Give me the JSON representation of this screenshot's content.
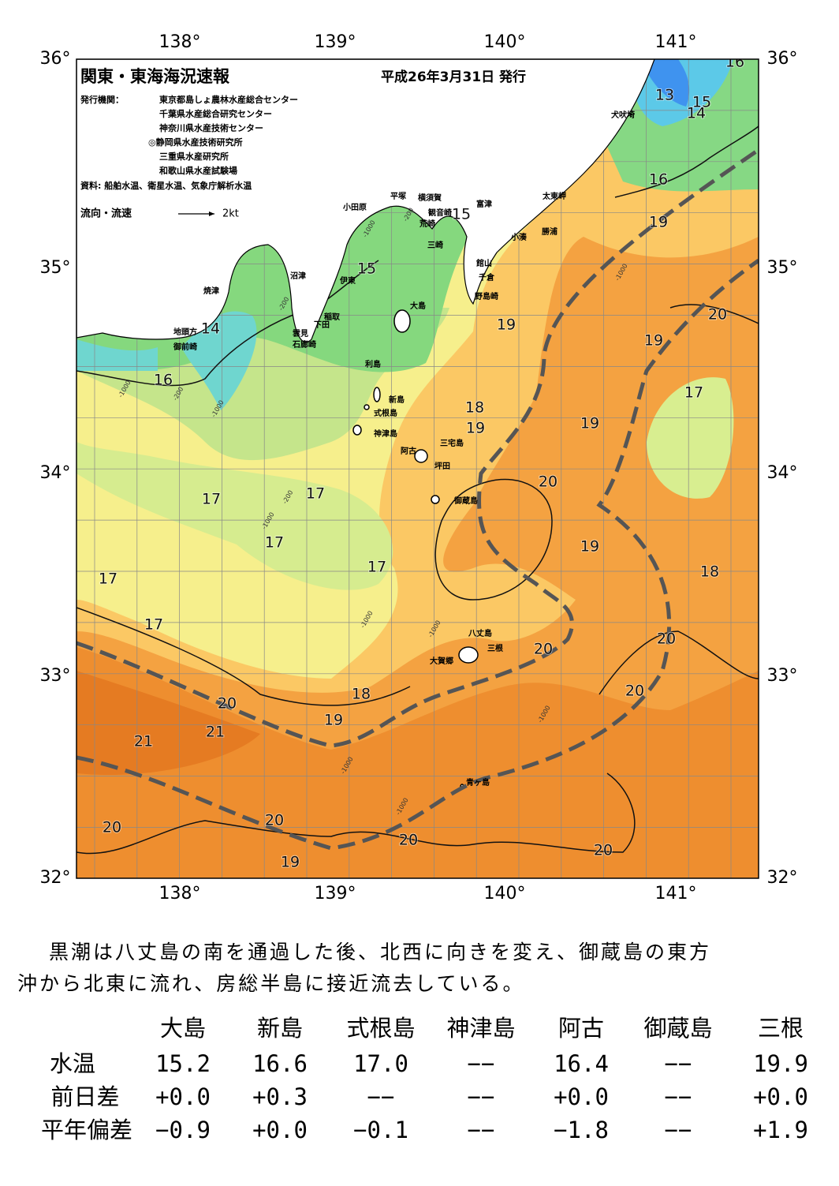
{
  "header": {
    "title": "関東・東海海況速報",
    "date": "平成26年3月31日 発行",
    "issuer_label": "発行機関：",
    "issuers": [
      "東京都島しょ農林水産総合センター",
      "千葉県水産総合研究センター",
      "神奈川県水産技術センター",
      "◎静岡県水産技術研究所",
      "三重県水産研究所",
      "和歌山県水産試験場"
    ],
    "source": "資料: 船舶水温、衛星水温、気象庁解析水温",
    "legend": "流向・流速",
    "legend_scale": "2kt"
  },
  "axes": {
    "lon": [
      "138°",
      "139°",
      "140°",
      "141°"
    ],
    "lat": [
      "36°",
      "35°",
      "34°",
      "33°",
      "32°"
    ]
  },
  "places": [
    "小田原",
    "平塚",
    "横須賀",
    "富津",
    "観音崎",
    "荒崎",
    "三崎",
    "太東岬",
    "勝浦",
    "小湊",
    "館山",
    "千倉",
    "野島崎",
    "犬吠埼",
    "沼津",
    "伊東",
    "焼津",
    "大島",
    "稲取",
    "下田",
    "雲見",
    "石廊崎",
    "地頭方",
    "御前崎",
    "利島",
    "新島",
    "式根島",
    "神津島",
    "三宅島",
    "阿古",
    "坪田",
    "御蔵島",
    "八丈島",
    "三根",
    "大賀郷",
    "青ヶ島"
  ],
  "temperature_labels": [
    "16",
    "13",
    "15",
    "14",
    "16",
    "19",
    "15",
    "15",
    "14",
    "16",
    "19",
    "20",
    "19",
    "17",
    "18",
    "19",
    "19",
    "20",
    "17",
    "17",
    "17",
    "19",
    "17",
    "18",
    "17",
    "17",
    "20",
    "20",
    "20",
    "18",
    "20",
    "19",
    "21",
    "21",
    "20",
    "20",
    "20",
    "20",
    "19"
  ],
  "depth_labels": [
    "-1000",
    "-200",
    "-200",
    "-1000",
    "-200",
    "-1000",
    "-200",
    "-1000",
    "-1000",
    "-1000",
    "-1000",
    "-1000",
    "-1000",
    "-1000"
  ],
  "summary": [
    "黒潮は八丈島の南を通過した後、北西に向きを変え、御蔵島の東方",
    "沖から北東に流れ、房総半島に接近流去している。"
  ],
  "table": {
    "columns": [
      "大島",
      "新島",
      "式根島",
      "神津島",
      "阿古",
      "御蔵島",
      "三根"
    ],
    "rows": [
      {
        "label": "水温",
        "cells": [
          "15.2",
          "16.6",
          "17.0",
          "−−",
          "16.4",
          "−−",
          "19.9"
        ]
      },
      {
        "label": "前日差",
        "cells": [
          "+0.0",
          "+0.3",
          "−−",
          "−−",
          "+0.0",
          "−−",
          "+0.0"
        ]
      },
      {
        "label": "平年偏差",
        "cells": [
          "−0.9",
          "+0.0",
          "−0.1",
          "−−",
          "−1.8",
          "−−",
          "+1.9"
        ]
      }
    ]
  }
}
